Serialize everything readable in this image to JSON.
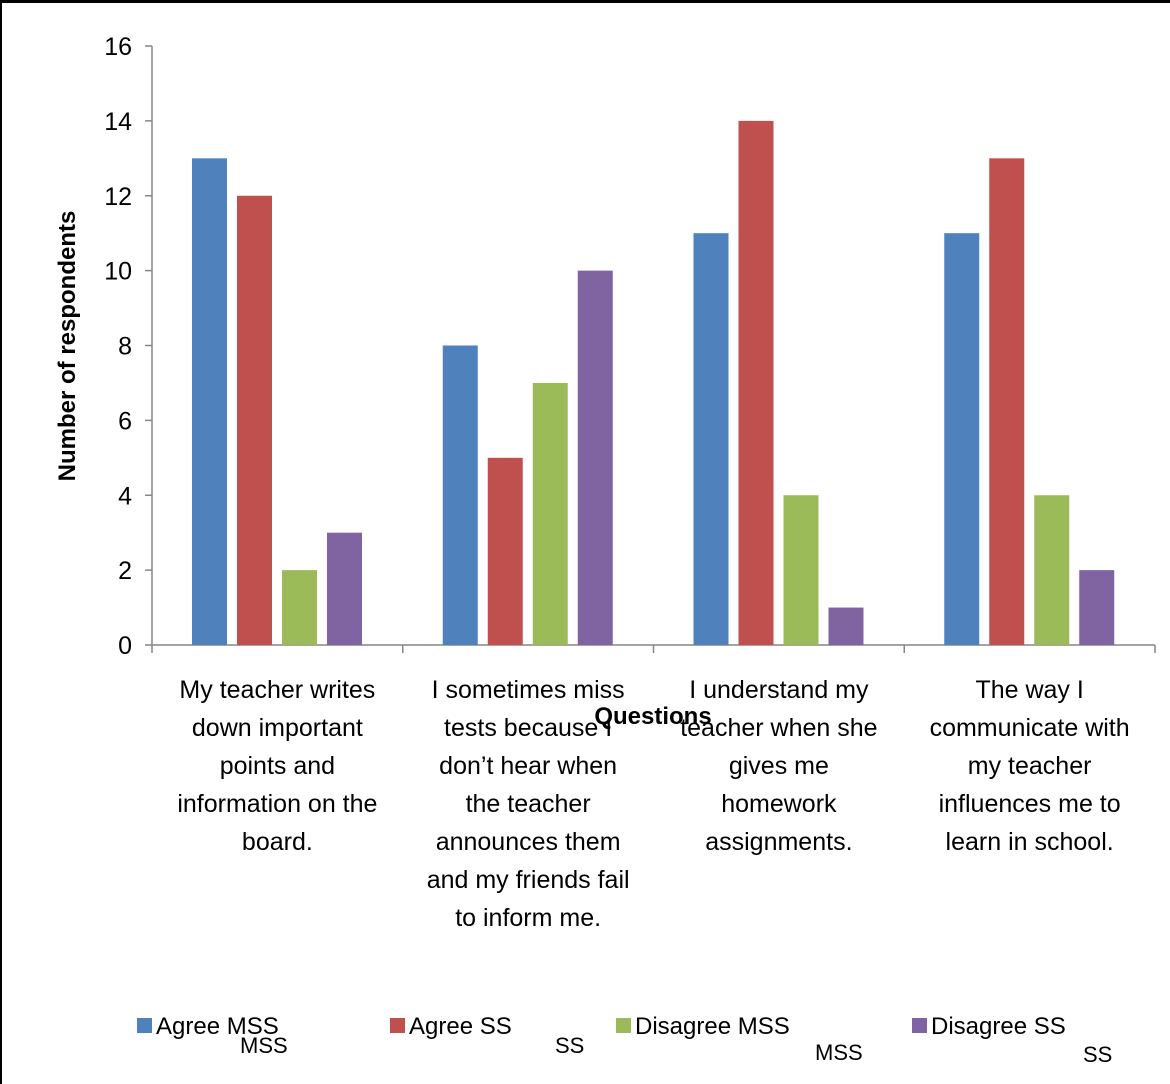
{
  "chart_data": {
    "type": "bar",
    "title": "",
    "xlabel": "Questions",
    "ylabel": "Number of respondents",
    "ylim": [
      0,
      16
    ],
    "yticks": [
      "0",
      "2",
      "4",
      "6",
      "8",
      "10",
      "12",
      "14",
      "16"
    ],
    "grid": false,
    "legend_position": "bottom",
    "categories": [
      [
        "My teacher writes",
        "down important",
        "points and",
        "information on the",
        "board."
      ],
      [
        "I sometimes miss",
        "tests because I",
        "don’t hear when",
        "the teacher",
        "announces them",
        "and my friends fail",
        "to inform me."
      ],
      [
        "I understand my",
        "teacher when she",
        "gives me",
        "homework",
        "assignments."
      ],
      [
        "The way I",
        "communicate with",
        "my teacher",
        "influences me to",
        "learn in school."
      ]
    ],
    "series": [
      {
        "name": "Agree MSS",
        "legend_sub": "MSS",
        "color": "#4F81BD",
        "values": [
          13,
          8,
          11,
          11
        ]
      },
      {
        "name": "Agree SS",
        "legend_sub": "SS",
        "color": "#C0504D",
        "values": [
          12,
          5,
          14,
          13
        ]
      },
      {
        "name": "Disagree MSS",
        "legend_sub": "MSS",
        "color": "#9BBB59",
        "values": [
          2,
          7,
          4,
          4
        ]
      },
      {
        "name": "Disagree SS",
        "legend_sub": "SS",
        "color": "#8064A2",
        "values": [
          3,
          10,
          1,
          2
        ]
      }
    ]
  }
}
